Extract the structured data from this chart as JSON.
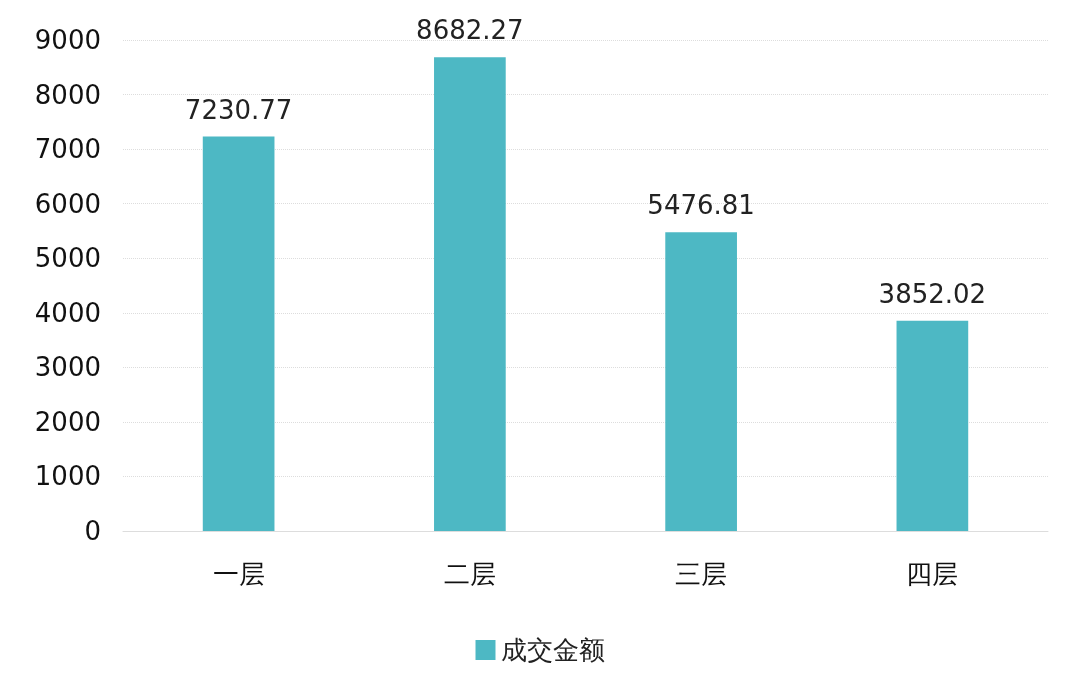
{
  "chart_data": {
    "type": "bar",
    "categories": [
      "一层",
      "二层",
      "三层",
      "四层"
    ],
    "series": [
      {
        "name": "成交金额",
        "color": "#4db8c4",
        "values": [
          7230.77,
          8682.27,
          5476.81,
          3852.02
        ]
      }
    ],
    "ylim": [
      0,
      9000
    ],
    "yticks": [
      0,
      1000,
      2000,
      3000,
      4000,
      5000,
      6000,
      7000,
      8000,
      9000
    ],
    "grid": "y",
    "legend": "bottom",
    "data_labels": true
  }
}
